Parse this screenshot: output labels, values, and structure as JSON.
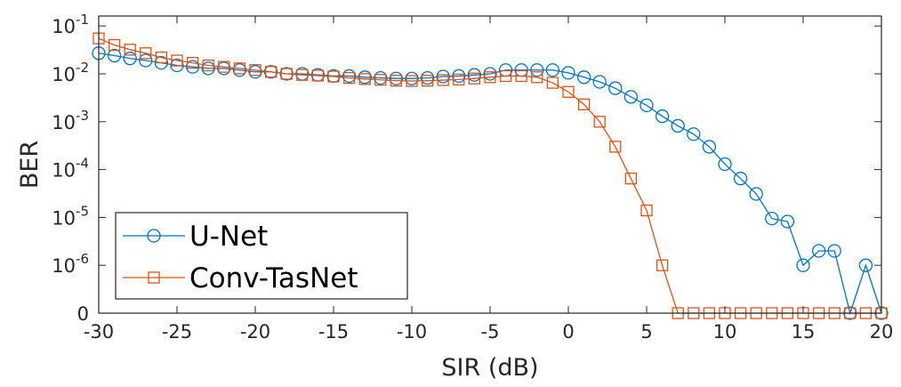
{
  "chart_data": {
    "type": "line",
    "xlabel": "SIR (dB)",
    "ylabel": "BER",
    "xlim": [
      -30,
      20
    ],
    "x_ticks": [
      "-30",
      "-25",
      "-20",
      "-15",
      "-10",
      "-5",
      "0",
      "5",
      "10",
      "15",
      "20"
    ],
    "y_scale": "log, with 0 shown at the bottom below 10^-6",
    "y_ticks": [
      {
        "base": "0",
        "exp": ""
      },
      {
        "base": "10",
        "exp": "-6"
      },
      {
        "base": "10",
        "exp": "-5"
      },
      {
        "base": "10",
        "exp": "-4"
      },
      {
        "base": "10",
        "exp": "-3"
      },
      {
        "base": "10",
        "exp": "-2"
      },
      {
        "base": "10",
        "exp": "-1"
      }
    ],
    "grid": false,
    "legend_position": "bottom-left",
    "x": [
      -30,
      -29,
      -28,
      -27,
      -26,
      -25,
      -24,
      -23,
      -22,
      -21,
      -20,
      -19,
      -18,
      -17,
      -16,
      -15,
      -14,
      -13,
      -12,
      -11,
      -10,
      -9,
      -8,
      -7,
      -6,
      -5,
      -4,
      -3,
      -2,
      -1,
      0,
      1,
      2,
      3,
      4,
      5,
      6,
      7,
      8,
      9,
      10,
      11,
      12,
      13,
      14,
      15,
      16,
      17,
      18,
      19,
      20
    ],
    "series": [
      {
        "name": "U-Net",
        "color": "#0072BD",
        "marker": "circle",
        "values": [
          0.027,
          0.024,
          0.021,
          0.019,
          0.017,
          0.015,
          0.014,
          0.013,
          0.013,
          0.012,
          0.011,
          0.011,
          0.01,
          0.01,
          0.0095,
          0.009,
          0.009,
          0.0085,
          0.0082,
          0.008,
          0.008,
          0.0082,
          0.0088,
          0.009,
          0.0095,
          0.01,
          0.012,
          0.012,
          0.012,
          0.012,
          0.0105,
          0.0085,
          0.0068,
          0.005,
          0.0033,
          0.0022,
          0.0013,
          0.00082,
          0.00055,
          0.0003,
          0.00013,
          6.5e-05,
          3.1e-05,
          9.5e-06,
          8.2e-06,
          1e-06,
          2e-06,
          2e-06,
          0,
          1e-06,
          0
        ]
      },
      {
        "name": "Conv-TasNet",
        "color": "#D95319",
        "marker": "square",
        "values": [
          0.055,
          0.04,
          0.032,
          0.027,
          0.022,
          0.019,
          0.017,
          0.015,
          0.014,
          0.013,
          0.012,
          0.011,
          0.01,
          0.0095,
          0.0092,
          0.0088,
          0.0082,
          0.0078,
          0.0075,
          0.0072,
          0.0071,
          0.0072,
          0.0074,
          0.0076,
          0.008,
          0.0085,
          0.009,
          0.009,
          0.0085,
          0.0065,
          0.0042,
          0.0023,
          0.001,
          0.0003,
          6.5e-05,
          1.4e-05,
          1e-06,
          0,
          0,
          0,
          0,
          0,
          0,
          0,
          0,
          0,
          0,
          0,
          0,
          0,
          0
        ]
      }
    ]
  }
}
